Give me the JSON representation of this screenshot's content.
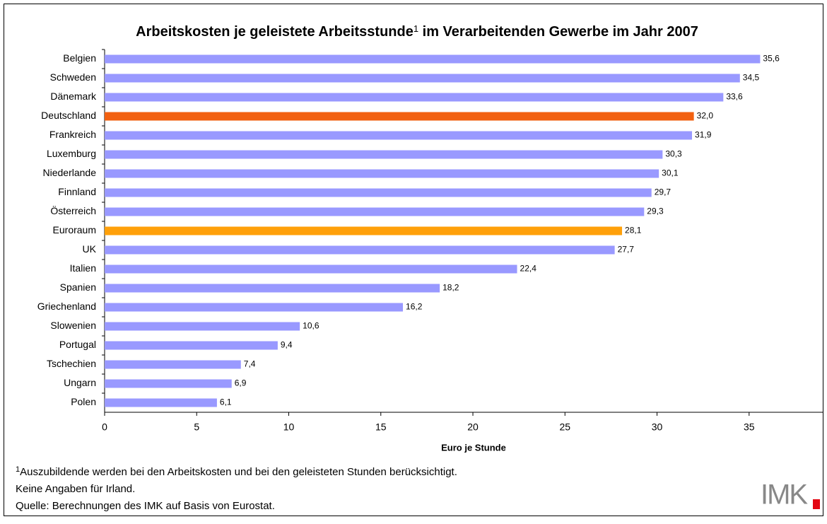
{
  "chart_data": {
    "type": "bar",
    "orientation": "horizontal",
    "title_parts": [
      "Arbeitskosten je geleistete Arbeitsstunde",
      "1",
      " im Verarbeitenden Gewerbe im Jahr 2007"
    ],
    "categories": [
      "Belgien",
      "Schweden",
      "Dänemark",
      "Deutschland",
      "Frankreich",
      "Luxemburg",
      "Niederlande",
      "Finnland",
      "Österreich",
      "Euroraum",
      "UK",
      "Italien",
      "Spanien",
      "Griechenland",
      "Slowenien",
      "Portugal",
      "Tschechien",
      "Ungarn",
      "Polen"
    ],
    "values": [
      35.6,
      34.5,
      33.6,
      32.0,
      31.9,
      30.3,
      30.1,
      29.7,
      29.3,
      28.1,
      27.7,
      22.4,
      18.2,
      16.2,
      10.6,
      9.4,
      7.4,
      6.9,
      6.1
    ],
    "value_labels": [
      "35,6",
      "34,5",
      "33,6",
      "32,0",
      "31,9",
      "30,3",
      "30,1",
      "29,7",
      "29,3",
      "28,1",
      "27,7",
      "22,4",
      "18,2",
      "16,2",
      "10,6",
      "9,4",
      "7,4",
      "6,9",
      "6,1"
    ],
    "colors": [
      "#9999ff",
      "#9999ff",
      "#9999ff",
      "#f26111",
      "#9999ff",
      "#9999ff",
      "#9999ff",
      "#9999ff",
      "#9999ff",
      "#ffa00a",
      "#9999ff",
      "#9999ff",
      "#9999ff",
      "#9999ff",
      "#9999ff",
      "#9999ff",
      "#9999ff",
      "#9999ff",
      "#9999ff"
    ],
    "xlim": [
      0,
      39
    ],
    "xticks": [
      0,
      5,
      10,
      15,
      20,
      25,
      30,
      35
    ],
    "xlabel": "Euro je Stunde",
    "grid": false,
    "footnotes": {
      "mark": "1",
      "note": "Auszubildende werden bei den Arbeitskosten und bei den geleisteten Stunden berücksichtigt.",
      "lines": [
        "Keine Angaben für Irland.",
        "Quelle: Berechnungen des IMK auf Basis von Eurostat."
      ]
    },
    "logo": "IMK"
  }
}
